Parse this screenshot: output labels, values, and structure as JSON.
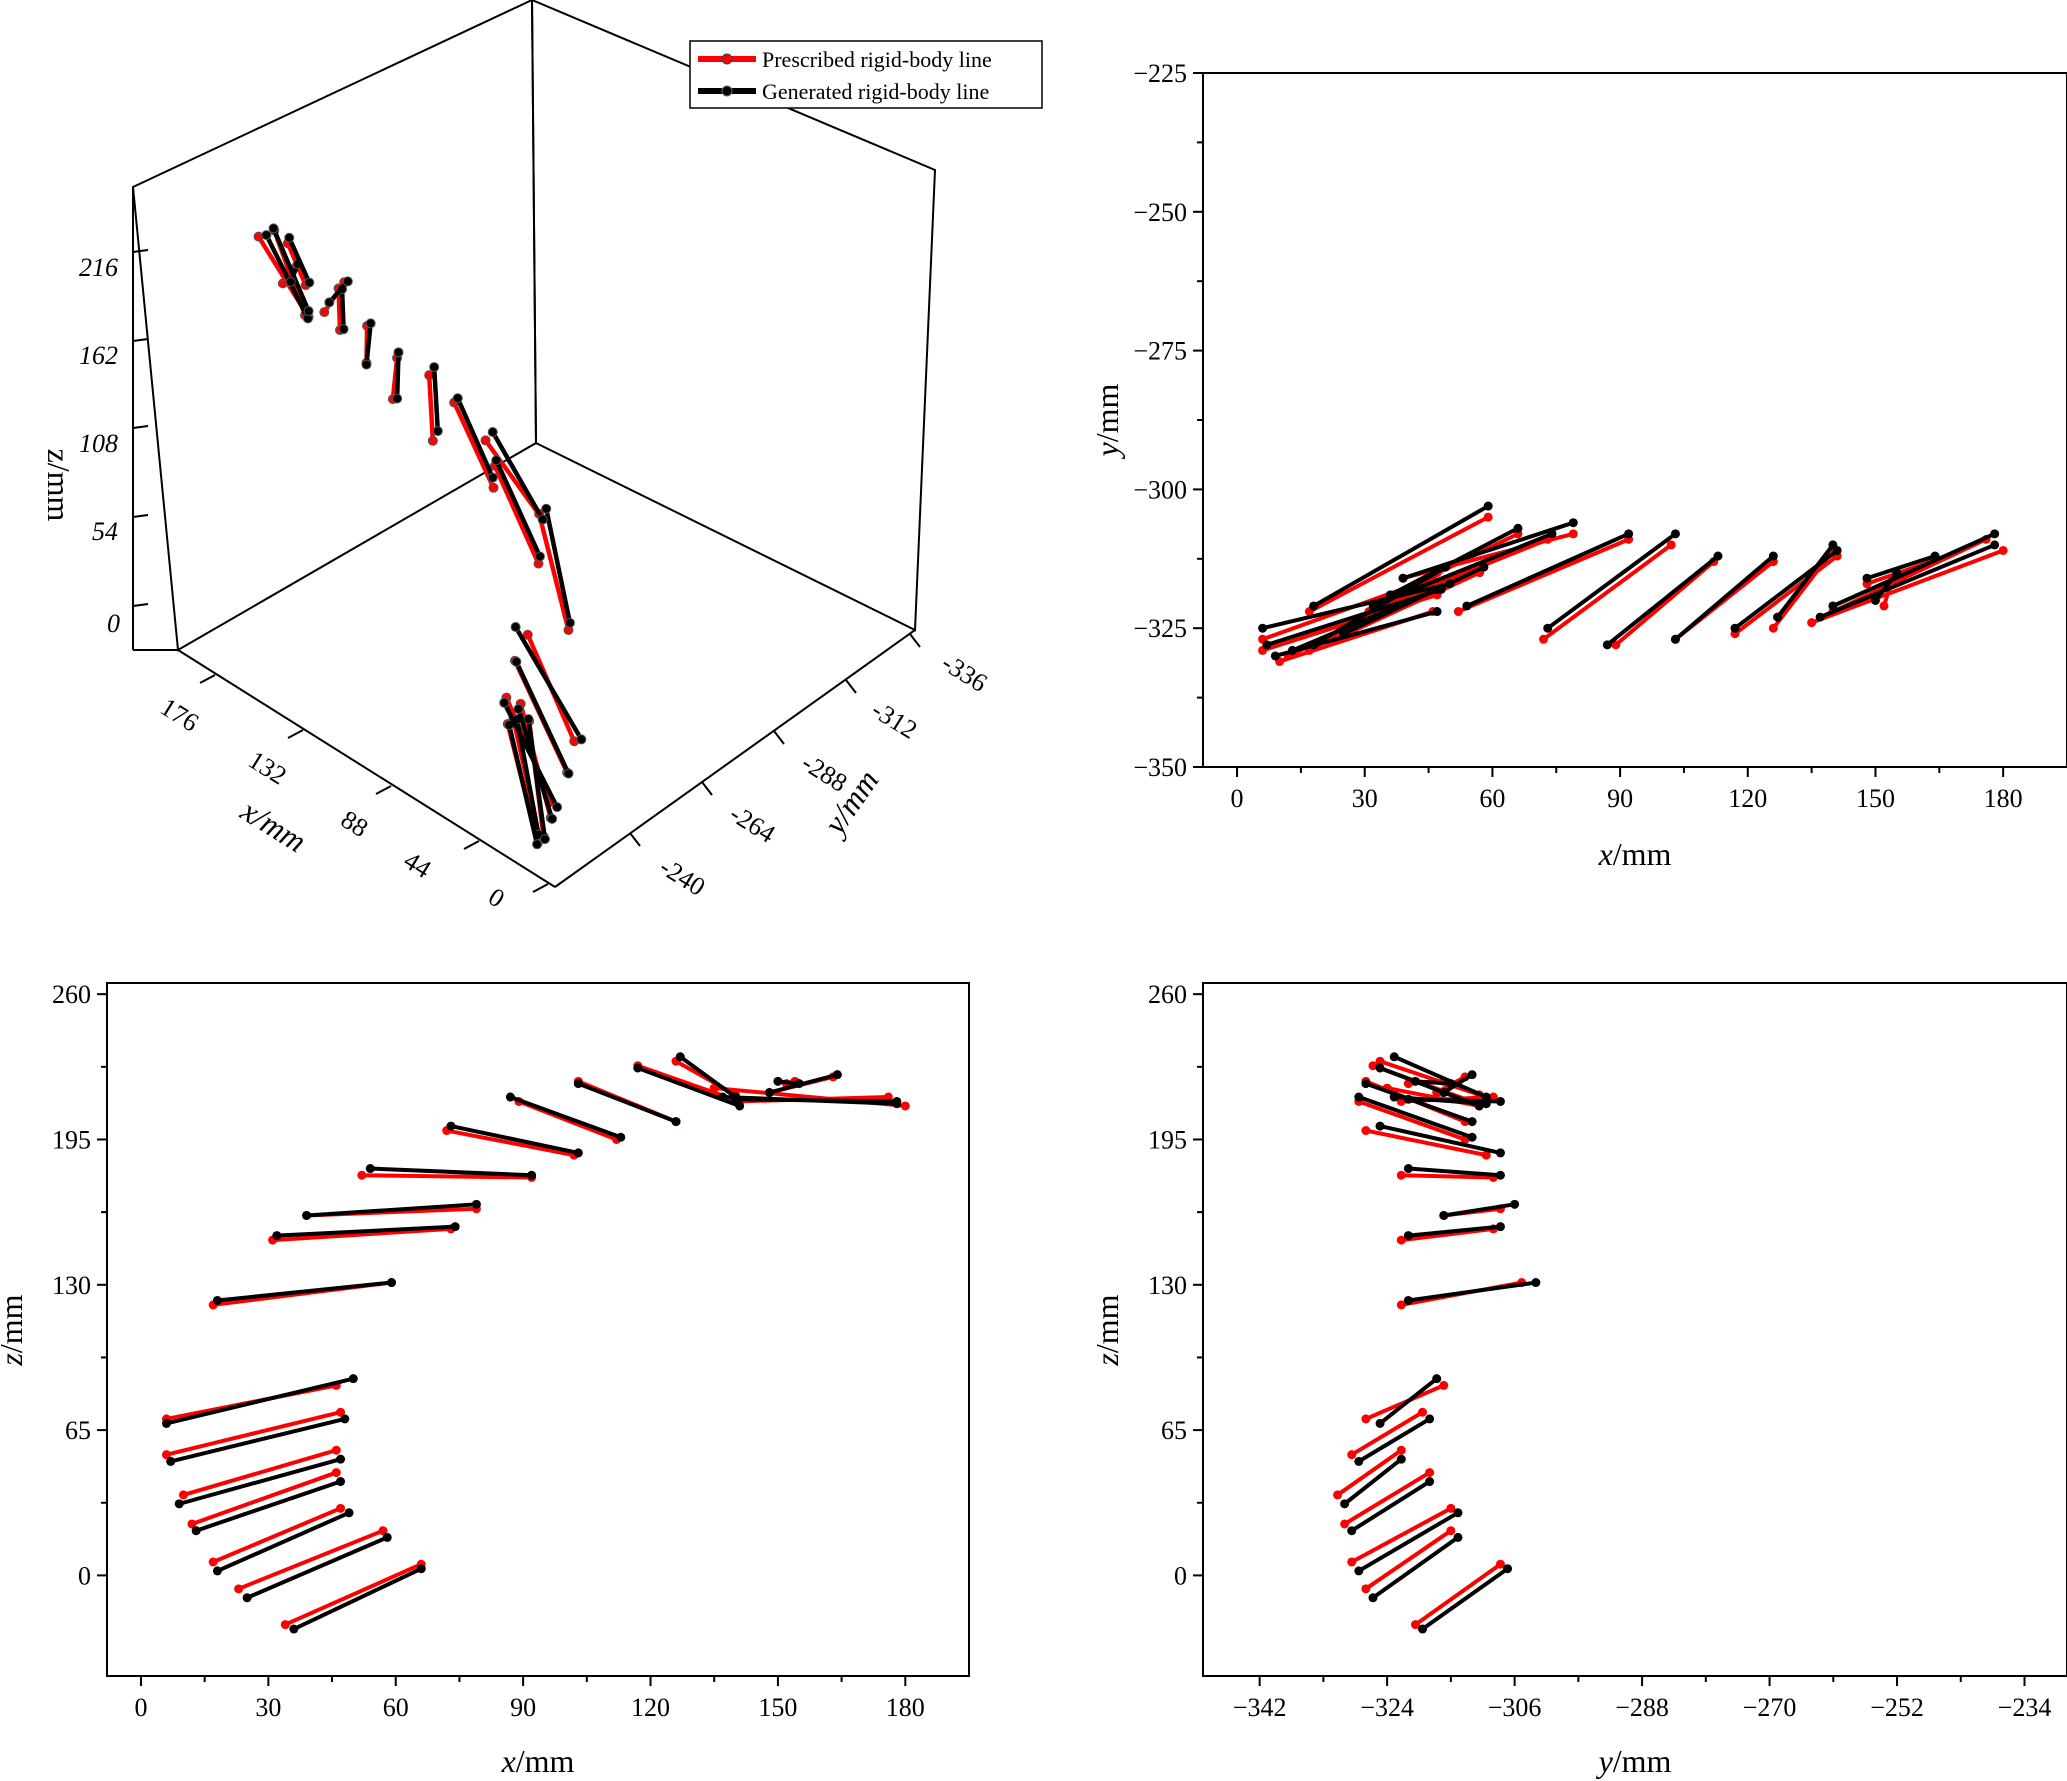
{
  "colors": {
    "prescribed": "#ff0000",
    "generated": "#000000"
  },
  "legend": {
    "prescribed": "Prescribed rigid-body line",
    "generated": "Generated rigid-body line"
  },
  "chart_data": [
    {
      "type": "line",
      "view": "3d",
      "xlabel": "x/mm",
      "ylabel": "y/mm",
      "zlabel": "z/mm",
      "xticks": [
        "0",
        "44",
        "88",
        "132",
        "176"
      ],
      "yticks": [
        "-240",
        "-264",
        "-288",
        "-312",
        "-336"
      ],
      "zticks": [
        "0",
        "54",
        "108",
        "162",
        "216"
      ],
      "legend": "top-right",
      "series_ref": "segments"
    },
    {
      "type": "line",
      "view": "x-y",
      "xlabel": "x/mm",
      "ylabel": "y/mm",
      "xlim": [
        -8,
        195
      ],
      "ylim": [
        -350,
        -225
      ],
      "xticks": [
        0,
        30,
        60,
        90,
        120,
        150,
        180
      ],
      "yticks": [
        -225,
        -250,
        -275,
        -300,
        -325,
        -350
      ],
      "series_ref": "segments"
    },
    {
      "type": "line",
      "view": "x-z",
      "xlabel": "x/mm",
      "ylabel": "z/mm",
      "xlim": [
        -8,
        195
      ],
      "ylim": [
        -45,
        265
      ],
      "xticks": [
        0,
        30,
        60,
        90,
        120,
        150,
        180
      ],
      "yticks": [
        0,
        65,
        130,
        195,
        260
      ],
      "series_ref": "segments"
    },
    {
      "type": "line",
      "view": "y-z",
      "xlabel": "y/mm",
      "ylabel": "z/mm",
      "xlim": [
        -350,
        -228
      ],
      "ylim": [
        -45,
        265
      ],
      "xticks": [
        -342,
        -324,
        -306,
        -288,
        -270,
        -252,
        -234
      ],
      "yticks": [
        0,
        65,
        130,
        195,
        260
      ],
      "series_ref": "segments"
    }
  ],
  "segments": {
    "prescribed": [
      [
        [
          34,
          -320,
          -22
        ],
        [
          66,
          -308,
          5
        ]
      ],
      [
        [
          23,
          -327,
          -6
        ],
        [
          57,
          -315,
          20
        ]
      ],
      [
        [
          17,
          -329,
          6
        ],
        [
          47,
          -315,
          30
        ]
      ],
      [
        [
          12,
          -330,
          23
        ],
        [
          46,
          -318,
          46
        ]
      ],
      [
        [
          10,
          -331,
          36
        ],
        [
          46,
          -322,
          56
        ]
      ],
      [
        [
          6,
          -329,
          54
        ],
        [
          47,
          -319,
          73
        ]
      ],
      [
        [
          6,
          -327,
          70
        ],
        [
          46,
          -316,
          85
        ]
      ],
      [
        [
          17,
          -322,
          121
        ],
        [
          59,
          -305,
          131
        ]
      ],
      [
        [
          31,
          -322,
          150
        ],
        [
          73,
          -309,
          155
        ]
      ],
      [
        [
          39,
          -316,
          161
        ],
        [
          79,
          -308,
          164
        ]
      ],
      [
        [
          52,
          -322,
          179
        ],
        [
          92,
          -309,
          178
        ]
      ],
      [
        [
          72,
          -327,
          199
        ],
        [
          102,
          -310,
          188
        ]
      ],
      [
        [
          89,
          -328,
          212
        ],
        [
          112,
          -313,
          195
        ]
      ],
      [
        [
          103,
          -327,
          221
        ],
        [
          126,
          -313,
          203
        ]
      ],
      [
        [
          117,
          -326,
          228
        ],
        [
          141,
          -312,
          212
        ]
      ],
      [
        [
          126,
          -325,
          230
        ],
        [
          140,
          -311,
          215
        ]
      ],
      [
        [
          135,
          -324,
          218
        ],
        [
          180,
          -311,
          210
        ]
      ],
      [
        [
          140,
          -322,
          212
        ],
        [
          176,
          -309,
          214
        ]
      ],
      [
        [
          152,
          -321,
          220
        ],
        [
          154,
          -316,
          221
        ]
      ],
      [
        [
          148,
          -317,
          216
        ],
        [
          163,
          -313,
          223
        ]
      ]
    ],
    "generated": [
      [
        [
          36,
          -319,
          -24
        ],
        [
          66,
          -307,
          3
        ]
      ],
      [
        [
          25,
          -326,
          -10
        ],
        [
          58,
          -314,
          17
        ]
      ],
      [
        [
          18,
          -328,
          2
        ],
        [
          49,
          -314,
          28
        ]
      ],
      [
        [
          13,
          -329,
          20
        ],
        [
          47,
          -318,
          42
        ]
      ],
      [
        [
          9,
          -330,
          32
        ],
        [
          47,
          -322,
          52
        ]
      ],
      [
        [
          7,
          -328,
          51
        ],
        [
          48,
          -318,
          70
        ]
      ],
      [
        [
          6,
          -325,
          68
        ],
        [
          50,
          -317,
          88
        ]
      ],
      [
        [
          18,
          -321,
          123
        ],
        [
          59,
          -303,
          131
        ]
      ],
      [
        [
          32,
          -321,
          152
        ],
        [
          74,
          -308,
          156
        ]
      ],
      [
        [
          39,
          -316,
          161
        ],
        [
          79,
          -306,
          166
        ]
      ],
      [
        [
          54,
          -321,
          182
        ],
        [
          92,
          -308,
          179
        ]
      ],
      [
        [
          73,
          -325,
          201
        ],
        [
          103,
          -308,
          189
        ]
      ],
      [
        [
          87,
          -328,
          214
        ],
        [
          113,
          -312,
          196
        ]
      ],
      [
        [
          103,
          -327,
          220
        ],
        [
          126,
          -312,
          203
        ]
      ],
      [
        [
          117,
          -325,
          227
        ],
        [
          141,
          -311,
          210
        ]
      ],
      [
        [
          127,
          -323,
          232
        ],
        [
          140,
          -310,
          214
        ]
      ],
      [
        [
          137,
          -323,
          214
        ],
        [
          178,
          -310,
          211
        ]
      ],
      [
        [
          140,
          -321,
          213
        ],
        [
          178,
          -308,
          212
        ]
      ],
      [
        [
          150,
          -320,
          221
        ],
        [
          155,
          -315,
          220
        ]
      ],
      [
        [
          148,
          -316,
          216
        ],
        [
          164,
          -312,
          224
        ]
      ]
    ]
  }
}
